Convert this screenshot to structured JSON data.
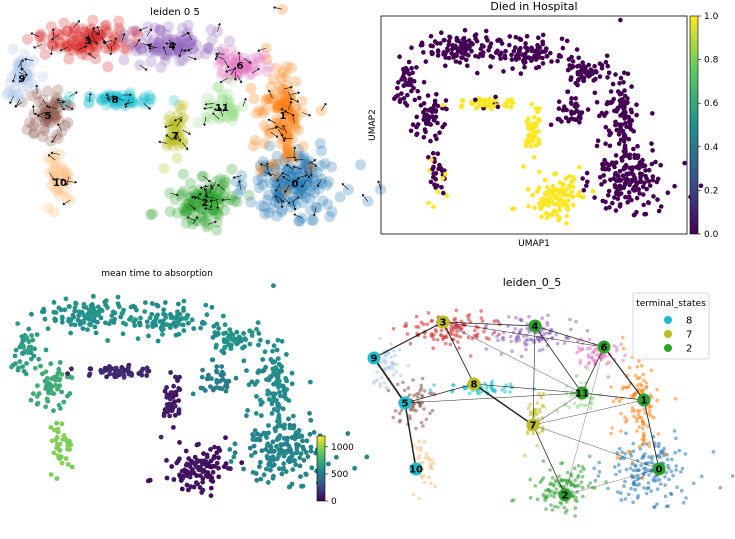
{
  "chart_data": [
    {
      "panel": "velocity-embedding",
      "type": "scatter",
      "title": "leiden 0 5",
      "clusters": [
        {
          "label": "0",
          "color": "#1f77b4",
          "center": [
            295,
            183
          ],
          "spread": [
            40,
            30
          ],
          "n": 160
        },
        {
          "label": "1",
          "color": "#ff7f0e",
          "center": [
            283,
            115
          ],
          "spread": [
            22,
            45
          ],
          "n": 120
        },
        {
          "label": "2",
          "color": "#2ca02c",
          "center": [
            205,
            202
          ],
          "spread": [
            30,
            25
          ],
          "n": 110
        },
        {
          "label": "3",
          "color": "#d62728",
          "center": [
            88,
            40
          ],
          "spread": [
            42,
            15
          ],
          "n": 110
        },
        {
          "label": "4",
          "color": "#9467bd",
          "center": [
            172,
            45
          ],
          "spread": [
            42,
            14
          ],
          "n": 100
        },
        {
          "label": "5",
          "color": "#8c564b",
          "center": [
            48,
            115
          ],
          "spread": [
            18,
            22
          ],
          "n": 60
        },
        {
          "label": "6",
          "color": "#e377c2",
          "center": [
            240,
            65
          ],
          "spread": [
            25,
            12
          ],
          "n": 55
        },
        {
          "label": "7",
          "color": "#bcbd22",
          "center": [
            175,
            135
          ],
          "spread": [
            10,
            25
          ],
          "n": 45
        },
        {
          "label": "8",
          "color": "#17becf",
          "center": [
            115,
            99
          ],
          "spread": [
            40,
            6
          ],
          "n": 55
        },
        {
          "label": "9",
          "color": "#aec7e8",
          "center": [
            22,
            78
          ],
          "spread": [
            14,
            18
          ],
          "n": 45
        },
        {
          "label": "10",
          "color": "#ffbb78",
          "center": [
            60,
            182
          ],
          "spread": [
            10,
            28
          ],
          "n": 35
        },
        {
          "label": "11",
          "color": "#98df8a",
          "center": [
            222,
            107
          ],
          "spread": [
            15,
            20
          ],
          "n": 40
        }
      ]
    },
    {
      "panel": "died-in-hospital",
      "type": "scatter",
      "title": "Died in Hospital",
      "xlabel": "UMAP1",
      "ylabel": "UMAP2",
      "colorbar": {
        "min": 0.0,
        "max": 1.0,
        "ticks": [
          "0.0",
          "0.2",
          "0.4",
          "0.6",
          "0.8",
          "1.0"
        ],
        "cmap": "viridis"
      },
      "colors": {
        "low": "#440154",
        "high": "#fde725"
      }
    },
    {
      "panel": "absorption-time",
      "type": "scatter",
      "title": "mean time to absorption",
      "colorbar": {
        "min": 0,
        "max": 1200,
        "ticks": [
          "0",
          "500",
          "1000"
        ],
        "cmap": "viridis"
      }
    },
    {
      "panel": "paga-graph",
      "type": "scatter",
      "title": "leiden_0_5",
      "legend": {
        "title": "terminal_states",
        "placement": "top-right",
        "entries": [
          {
            "label": "8",
            "color": "#17becf"
          },
          {
            "label": "7",
            "color": "#bcbd22"
          },
          {
            "label": "2",
            "color": "#2ca02c"
          }
        ]
      },
      "nodes": [
        {
          "label": "0",
          "color": "#2ca02c"
        },
        {
          "label": "1",
          "color": "#2ca02c"
        },
        {
          "label": "2",
          "color": "#2ca02c"
        },
        {
          "label": "3",
          "color": "#bcbd22"
        },
        {
          "label": "4",
          "color": "#2ca02c"
        },
        {
          "label": "5",
          "color": "#17becf"
        },
        {
          "label": "6",
          "color": "#2ca02c"
        },
        {
          "label": "7",
          "color": "#bcbd22"
        },
        {
          "label": "8",
          "color": "#bcbd22"
        },
        {
          "label": "9",
          "color": "#17becf"
        },
        {
          "label": "10",
          "color": "#17becf"
        },
        {
          "label": "11",
          "color": "#2ca02c"
        }
      ]
    }
  ]
}
